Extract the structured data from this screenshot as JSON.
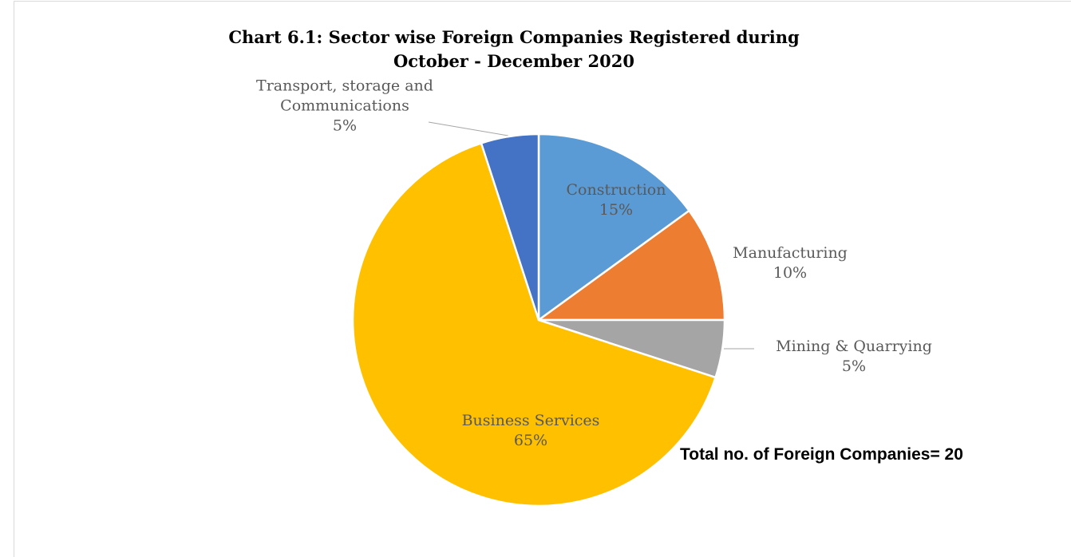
{
  "chart_data": {
    "type": "pie",
    "title": "Chart 6.1: Sector wise Foreign Companies Registered during October - December 2020",
    "categories": [
      "Construction",
      "Manufacturing",
      "Mining & Quarrying",
      "Business Services",
      "Transport, storage and Communications"
    ],
    "values": [
      15,
      10,
      5,
      65,
      5
    ],
    "value_labels": [
      "15%",
      "10%",
      "5%",
      "65%",
      "5%"
    ],
    "colors": [
      "#5b9bd5",
      "#ed7d31",
      "#a5a5a5",
      "#ffc000",
      "#4472c4"
    ],
    "annotation": "Total no. of Foreign Companies= 20"
  }
}
